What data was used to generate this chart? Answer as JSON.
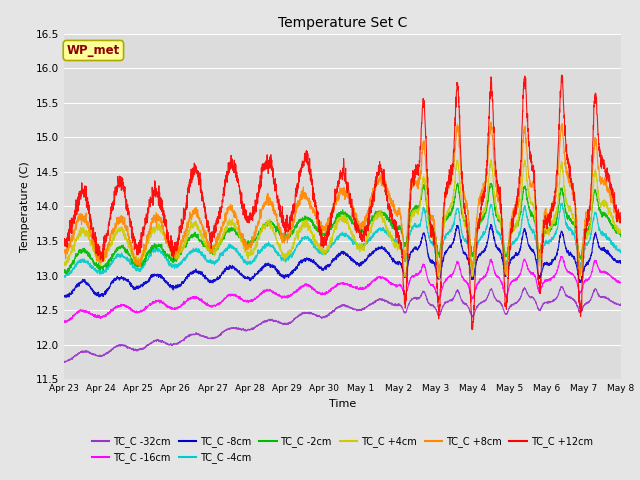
{
  "title": "Temperature Set C",
  "xlabel": "Time",
  "ylabel": "Temperature (C)",
  "ylim": [
    11.5,
    16.5
  ],
  "yticks": [
    11.5,
    12.0,
    12.5,
    13.0,
    13.5,
    14.0,
    14.5,
    15.0,
    15.5,
    16.0,
    16.5
  ],
  "xtick_labels": [
    "Apr 23",
    "Apr 24",
    "Apr 25",
    "Apr 26",
    "Apr 27",
    "Apr 28",
    "Apr 29",
    "Apr 30",
    "May 1",
    "May 2",
    "May 3",
    "May 4",
    "May 5",
    "May 6",
    "May 7",
    "May 8"
  ],
  "n_points": 3000,
  "series": [
    {
      "label": "TC_C -32cm",
      "color": "#9933CC",
      "base": 11.8,
      "trend": 1.0,
      "amp": 0.05,
      "phase": 0.0
    },
    {
      "label": "TC_C -16cm",
      "color": "#FF00FF",
      "base": 12.4,
      "trend": 0.6,
      "amp": 0.07,
      "phase": 0.0
    },
    {
      "label": "TC_C -8cm",
      "color": "#0000CC",
      "base": 12.8,
      "trend": 0.55,
      "amp": 0.1,
      "phase": 0.0
    },
    {
      "label": "TC_C -4cm",
      "color": "#00CCCC",
      "base": 13.1,
      "trend": 0.5,
      "amp": 0.12,
      "phase": 0.0
    },
    {
      "label": "TC_C -2cm",
      "color": "#00BB00",
      "base": 13.2,
      "trend": 0.45,
      "amp": 0.14,
      "phase": 0.0
    },
    {
      "label": "TC_C +4cm",
      "color": "#CCCC00",
      "base": 13.4,
      "trend": 0.4,
      "amp": 0.22,
      "phase": 0.0
    },
    {
      "label": "TC_C +8cm",
      "color": "#FF8800",
      "base": 13.6,
      "trend": 0.35,
      "amp": 0.28,
      "phase": 0.0
    },
    {
      "label": "TC_C +12cm",
      "color": "#FF0000",
      "base": 13.9,
      "trend": 0.3,
      "amp": 0.45,
      "phase": 0.0
    }
  ],
  "annotation_text": "WP_met",
  "bg_color": "#E5E5E5",
  "plot_bg_color": "#DCDCDC",
  "grid_color": "#FFFFFF"
}
